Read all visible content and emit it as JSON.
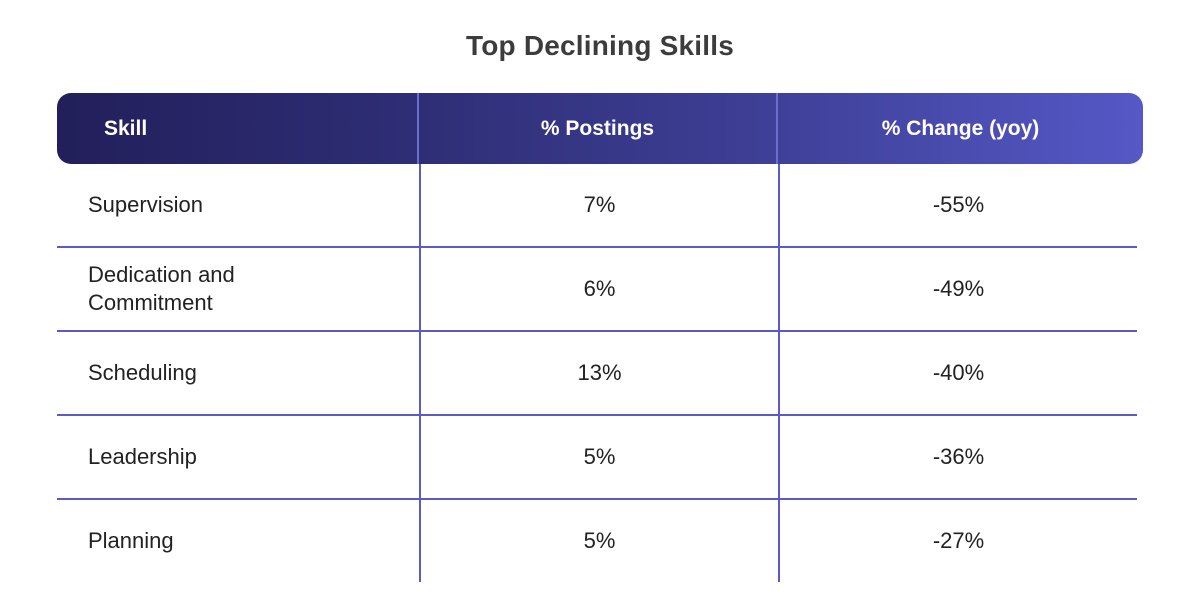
{
  "title": "Top Declining Skills",
  "columns": {
    "skill": "Skill",
    "postings": "% Postings",
    "change": "% Change (yoy)"
  },
  "rows": [
    {
      "skill": "Supervision",
      "postings": "7%",
      "change": "-55%"
    },
    {
      "skill": "Dedication and Commitment",
      "postings": "6%",
      "change": "-49%"
    },
    {
      "skill": "Scheduling",
      "postings": "13%",
      "change": "-40%"
    },
    {
      "skill": "Leadership",
      "postings": "5%",
      "change": "-36%"
    },
    {
      "skill": "Planning",
      "postings": "5%",
      "change": "-27%"
    }
  ],
  "colors": {
    "header_start": "#221f5a",
    "header_end": "#5558c6",
    "grid_line": "#5a5cc4"
  },
  "chart_data": {
    "type": "table",
    "title": "Top Declining Skills",
    "columns": [
      "Skill",
      "% Postings",
      "% Change (yoy)"
    ],
    "rows": [
      [
        "Supervision",
        "7%",
        "-55%"
      ],
      [
        "Dedication and Commitment",
        "6%",
        "-49%"
      ],
      [
        "Scheduling",
        "13%",
        "-40%"
      ],
      [
        "Leadership",
        "5%",
        "-36%"
      ],
      [
        "Planning",
        "5%",
        "-27%"
      ]
    ]
  }
}
